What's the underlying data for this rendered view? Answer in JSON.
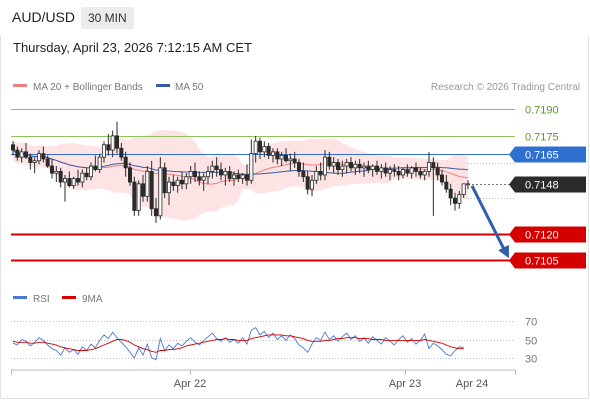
{
  "header": {
    "symbol": "AUD/USD",
    "timeframe": "30 MIN",
    "datetime": "Thursday, April 23, 2026 7:12:15 AM CET"
  },
  "legend": {
    "ma20_label": "MA 20 + Bollinger Bands",
    "ma50_label": "MA 50",
    "credit": "Research © 2026 Trading Central",
    "rsi_label": "RSI",
    "rsi_ma_label": "9MA"
  },
  "colors": {
    "ma20": "#f08080",
    "ma50": "#3b5ba5",
    "bands_fill": "#fde3e3",
    "candle": "#2b2b2b",
    "resistance": "#8fc45a",
    "pivot": "#2f6fd0",
    "support": "#d40000",
    "current": "#2b2b2b",
    "arrow": "#2f5fa8",
    "rsi": "#4a78d0",
    "rsi_ma": "#d40000"
  },
  "chart_data": [
    {
      "type": "candlestick",
      "title": "",
      "x_tick_labels": [
        "Apr 22",
        "Apr 23",
        "Apr 24"
      ],
      "ylim": [
        0.7095,
        0.7198
      ],
      "levels": [
        {
          "value": 0.719,
          "label": "0.7190",
          "role": "resistance"
        },
        {
          "value": 0.7175,
          "label": "0.7175",
          "role": "resistance"
        },
        {
          "value": 0.7165,
          "label": "0.7165",
          "role": "pivot"
        },
        {
          "value": 0.7148,
          "label": "0.7148",
          "role": "current price"
        },
        {
          "value": 0.712,
          "label": "0.7120",
          "role": "support"
        },
        {
          "value": 0.7105,
          "label": "0.7105",
          "role": "support"
        }
      ],
      "forecast_arrow": {
        "from": 0.7148,
        "to": 0.7105
      },
      "candles": [
        [
          0.717,
          0.7172,
          0.7164,
          0.7167
        ],
        [
          0.7167,
          0.7169,
          0.7161,
          0.7163
        ],
        [
          0.7163,
          0.7168,
          0.716,
          0.7166
        ],
        [
          0.7166,
          0.7171,
          0.7162,
          0.7163
        ],
        [
          0.7163,
          0.7165,
          0.7156,
          0.716
        ],
        [
          0.716,
          0.7163,
          0.7154,
          0.7161
        ],
        [
          0.7161,
          0.7167,
          0.7159,
          0.7165
        ],
        [
          0.7165,
          0.7169,
          0.716,
          0.7162
        ],
        [
          0.7162,
          0.7164,
          0.7157,
          0.7158
        ],
        [
          0.7158,
          0.7162,
          0.7151,
          0.7154
        ],
        [
          0.7154,
          0.7158,
          0.7149,
          0.7155
        ],
        [
          0.7155,
          0.7157,
          0.7146,
          0.7149
        ],
        [
          0.7149,
          0.7153,
          0.7138,
          0.7151
        ],
        [
          0.7151,
          0.7155,
          0.7146,
          0.7147
        ],
        [
          0.7147,
          0.7152,
          0.7145,
          0.7151
        ],
        [
          0.7151,
          0.7156,
          0.7147,
          0.7149
        ],
        [
          0.7149,
          0.7156,
          0.7146,
          0.7154
        ],
        [
          0.7154,
          0.7157,
          0.715,
          0.7152
        ],
        [
          0.7152,
          0.716,
          0.715,
          0.7158
        ],
        [
          0.7158,
          0.7164,
          0.7155,
          0.7156
        ],
        [
          0.7156,
          0.7165,
          0.7154,
          0.7163
        ],
        [
          0.7163,
          0.7172,
          0.716,
          0.717
        ],
        [
          0.717,
          0.7176,
          0.7164,
          0.7167
        ],
        [
          0.7167,
          0.7178,
          0.7163,
          0.7175
        ],
        [
          0.7175,
          0.7183,
          0.7165,
          0.7168
        ],
        [
          0.7168,
          0.7171,
          0.7161,
          0.7163
        ],
        [
          0.7163,
          0.7166,
          0.7152,
          0.7157
        ],
        [
          0.7157,
          0.716,
          0.7147,
          0.7149
        ],
        [
          0.7149,
          0.7152,
          0.713,
          0.7133
        ],
        [
          0.7133,
          0.715,
          0.713,
          0.7148
        ],
        [
          0.7148,
          0.7153,
          0.7138,
          0.7141
        ],
        [
          0.7141,
          0.7158,
          0.7138,
          0.7155
        ],
        [
          0.7155,
          0.7161,
          0.713,
          0.7134
        ],
        [
          0.7134,
          0.714,
          0.7126,
          0.713
        ],
        [
          0.713,
          0.7163,
          0.7128,
          0.7157
        ],
        [
          0.7157,
          0.716,
          0.714,
          0.7143
        ],
        [
          0.7143,
          0.7152,
          0.7136,
          0.7149
        ],
        [
          0.7149,
          0.7153,
          0.7144,
          0.7147
        ],
        [
          0.7147,
          0.7152,
          0.7143,
          0.715
        ],
        [
          0.715,
          0.7155,
          0.7145,
          0.7148
        ],
        [
          0.7148,
          0.7154,
          0.7145,
          0.7152
        ],
        [
          0.7152,
          0.7158,
          0.7148,
          0.7155
        ],
        [
          0.7155,
          0.716,
          0.7149,
          0.7152
        ],
        [
          0.7152,
          0.7155,
          0.7147,
          0.715
        ],
        [
          0.715,
          0.7154,
          0.7144,
          0.7152
        ],
        [
          0.7152,
          0.7158,
          0.7148,
          0.7155
        ],
        [
          0.7155,
          0.7161,
          0.7151,
          0.7158
        ],
        [
          0.7158,
          0.7163,
          0.7152,
          0.7156
        ],
        [
          0.7156,
          0.716,
          0.715,
          0.7153
        ],
        [
          0.7153,
          0.7157,
          0.7147,
          0.7155
        ],
        [
          0.7155,
          0.7158,
          0.7149,
          0.7151
        ],
        [
          0.7151,
          0.7155,
          0.7147,
          0.7153
        ],
        [
          0.7153,
          0.7156,
          0.7149,
          0.7151
        ],
        [
          0.7151,
          0.7154,
          0.7148,
          0.7153
        ],
        [
          0.7153,
          0.7159,
          0.7147,
          0.715
        ],
        [
          0.715,
          0.7173,
          0.7148,
          0.7165
        ],
        [
          0.7165,
          0.7175,
          0.716,
          0.7172
        ],
        [
          0.7172,
          0.7174,
          0.7162,
          0.7166
        ],
        [
          0.7166,
          0.7172,
          0.7163,
          0.7169
        ],
        [
          0.7169,
          0.7171,
          0.7162,
          0.7164
        ],
        [
          0.7164,
          0.7168,
          0.716,
          0.7166
        ],
        [
          0.7166,
          0.7168,
          0.7159,
          0.7162
        ],
        [
          0.7162,
          0.7166,
          0.7158,
          0.7164
        ],
        [
          0.7164,
          0.7168,
          0.716,
          0.7161
        ],
        [
          0.7161,
          0.7165,
          0.7155,
          0.7162
        ],
        [
          0.7162,
          0.7166,
          0.7157,
          0.716
        ],
        [
          0.716,
          0.7162,
          0.7152,
          0.7155
        ],
        [
          0.7155,
          0.716,
          0.7149,
          0.7152
        ],
        [
          0.7152,
          0.7155,
          0.7142,
          0.7145
        ],
        [
          0.7145,
          0.7153,
          0.7141,
          0.715
        ],
        [
          0.715,
          0.7158,
          0.7148,
          0.7155
        ],
        [
          0.7155,
          0.716,
          0.715,
          0.7153
        ],
        [
          0.7153,
          0.7167,
          0.715,
          0.7163
        ],
        [
          0.7163,
          0.7166,
          0.7156,
          0.7158
        ],
        [
          0.7158,
          0.7163,
          0.7154,
          0.716
        ],
        [
          0.716,
          0.7162,
          0.7153,
          0.7156
        ],
        [
          0.7156,
          0.7161,
          0.7152,
          0.7158
        ],
        [
          0.7158,
          0.7162,
          0.7154,
          0.716
        ],
        [
          0.716,
          0.7163,
          0.7155,
          0.7157
        ],
        [
          0.7157,
          0.7161,
          0.7153,
          0.7159
        ],
        [
          0.7159,
          0.7162,
          0.7154,
          0.7157
        ],
        [
          0.7157,
          0.716,
          0.7152,
          0.7158
        ],
        [
          0.7158,
          0.7161,
          0.7154,
          0.7156
        ],
        [
          0.7156,
          0.7159,
          0.7152,
          0.7158
        ],
        [
          0.7158,
          0.7161,
          0.7153,
          0.7155
        ],
        [
          0.7155,
          0.7159,
          0.7151,
          0.7157
        ],
        [
          0.7157,
          0.716,
          0.7152,
          0.7154
        ],
        [
          0.7154,
          0.7158,
          0.715,
          0.7156
        ],
        [
          0.7156,
          0.7159,
          0.7152,
          0.7155
        ],
        [
          0.7155,
          0.7158,
          0.715,
          0.7153
        ],
        [
          0.7153,
          0.7157,
          0.7151,
          0.7156
        ],
        [
          0.7156,
          0.7159,
          0.7152,
          0.7154
        ],
        [
          0.7154,
          0.7158,
          0.7151,
          0.7157
        ],
        [
          0.7157,
          0.716,
          0.7152,
          0.7155
        ],
        [
          0.7155,
          0.7157,
          0.7151,
          0.7153
        ],
        [
          0.7153,
          0.7156,
          0.715,
          0.7155
        ],
        [
          0.7155,
          0.7166,
          0.7152,
          0.716
        ],
        [
          0.716,
          0.7163,
          0.713,
          0.7157
        ],
        [
          0.7157,
          0.716,
          0.715,
          0.7153
        ],
        [
          0.7153,
          0.7156,
          0.7147,
          0.7149
        ],
        [
          0.7149,
          0.7153,
          0.7143,
          0.7145
        ],
        [
          0.7145,
          0.7148,
          0.7136,
          0.714
        ],
        [
          0.714,
          0.7143,
          0.7133,
          0.7137
        ],
        [
          0.7137,
          0.7144,
          0.7134,
          0.7142
        ],
        [
          0.7142,
          0.7148,
          0.714,
          0.7148
        ],
        [
          0.7148,
          0.715,
          0.7145,
          0.7148
        ]
      ]
    },
    {
      "type": "line",
      "title": "",
      "ylim": [
        20,
        80
      ],
      "y_tick_labels": [
        "70",
        "50",
        "30"
      ],
      "y_ticks": [
        70,
        50,
        30
      ],
      "series": [
        {
          "name": "RSI",
          "values": [
            46,
            44,
            50,
            48,
            43,
            47,
            52,
            49,
            44,
            40,
            38,
            33,
            41,
            36,
            39,
            34,
            42,
            38,
            45,
            41,
            49,
            55,
            51,
            58,
            52,
            47,
            42,
            36,
            30,
            41,
            33,
            45,
            30,
            28,
            51,
            38,
            44,
            40,
            46,
            43,
            48,
            52,
            47,
            44,
            49,
            53,
            57,
            51,
            48,
            52,
            47,
            50,
            46,
            52,
            45,
            60,
            63,
            55,
            59,
            52,
            57,
            50,
            54,
            49,
            55,
            51,
            44,
            41,
            36,
            45,
            52,
            49,
            58,
            50,
            54,
            48,
            53,
            57,
            50,
            54,
            48,
            52,
            46,
            53,
            49,
            45,
            52,
            48,
            44,
            50,
            54,
            47,
            51,
            45,
            49,
            56,
            40,
            46,
            43,
            39,
            34,
            32,
            38,
            42,
            41
          ]
        },
        {
          "name": "9MA",
          "values": [
            48,
            47,
            47,
            47,
            46,
            46,
            47,
            47,
            46,
            45,
            44,
            42,
            41,
            40,
            39,
            38,
            38,
            38,
            39,
            40,
            42,
            44,
            46,
            48,
            50,
            50,
            49,
            47,
            44,
            42,
            40,
            39,
            37,
            36,
            38,
            38,
            39,
            39,
            40,
            41,
            43,
            44,
            45,
            46,
            47,
            48,
            49,
            50,
            50,
            51,
            50,
            50,
            49,
            49,
            49,
            51,
            52,
            53,
            54,
            55,
            55,
            55,
            55,
            54,
            54,
            53,
            52,
            51,
            49,
            48,
            48,
            48,
            49,
            49,
            50,
            51,
            51,
            52,
            52,
            52,
            51,
            51,
            51,
            50,
            50,
            50,
            49,
            49,
            49,
            49,
            49,
            49,
            49,
            49,
            49,
            50,
            49,
            48,
            47,
            46,
            44,
            42,
            41,
            40,
            40
          ]
        }
      ]
    }
  ]
}
